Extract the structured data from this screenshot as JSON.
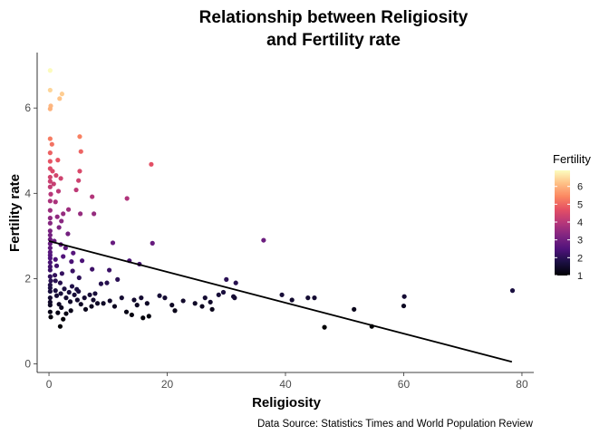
{
  "chart_data": {
    "type": "scatter",
    "title_line1": "Relationship between Religiosity",
    "title_line2": "and Fertility rate",
    "xlabel": "Religiosity",
    "ylabel": "Fertility rate",
    "caption": "Data Source: Statistics Times and World Population Review",
    "xlim": [
      -2,
      82
    ],
    "ylim": [
      -0.2,
      7.3
    ],
    "x_ticks": [
      0,
      20,
      40,
      60,
      80
    ],
    "y_ticks": [
      0,
      2,
      4,
      6
    ],
    "x_tick_labels": [
      "0",
      "20",
      "40",
      "60",
      "80"
    ],
    "y_tick_labels": [
      "0",
      "2",
      "4",
      "6"
    ],
    "grid": false,
    "legend": {
      "title": "Fertility",
      "placement": "right",
      "range": [
        1,
        6.9
      ],
      "ticks": [
        1,
        2,
        3,
        4,
        5,
        6
      ],
      "tick_labels": [
        "1",
        "2",
        "3",
        "4",
        "5",
        "6"
      ],
      "colormap": "magma"
    },
    "trend_line": {
      "x": [
        0,
        78.3
      ],
      "y": [
        2.88,
        0.05
      ]
    },
    "points": [
      [
        0.2,
        6.88
      ],
      [
        0.2,
        6.42
      ],
      [
        0.3,
        6.05
      ],
      [
        0.2,
        5.98
      ],
      [
        2.2,
        6.33
      ],
      [
        1.8,
        6.22
      ],
      [
        0.2,
        5.28
      ],
      [
        0.5,
        5.15
      ],
      [
        5.2,
        5.33
      ],
      [
        5.4,
        4.98
      ],
      [
        0.2,
        4.95
      ],
      [
        0.2,
        4.75
      ],
      [
        1.5,
        4.78
      ],
      [
        0.2,
        4.58
      ],
      [
        0.6,
        4.52
      ],
      [
        1.2,
        4.42
      ],
      [
        0.2,
        4.38
      ],
      [
        5.2,
        4.52
      ],
      [
        17.3,
        4.68
      ],
      [
        5.0,
        4.3
      ],
      [
        4.6,
        4.08
      ],
      [
        0.2,
        4.28
      ],
      [
        2.0,
        4.35
      ],
      [
        0.2,
        4.15
      ],
      [
        0.8,
        4.22
      ],
      [
        1.6,
        4.05
      ],
      [
        0.3,
        3.98
      ],
      [
        7.3,
        3.92
      ],
      [
        13.2,
        3.88
      ],
      [
        0.2,
        3.82
      ],
      [
        1.1,
        3.8
      ],
      [
        3.3,
        3.62
      ],
      [
        0.2,
        3.6
      ],
      [
        2.4,
        3.52
      ],
      [
        0.2,
        3.42
      ],
      [
        1.4,
        3.45
      ],
      [
        0.2,
        3.3
      ],
      [
        2.1,
        3.35
      ],
      [
        5.3,
        3.52
      ],
      [
        7.6,
        3.52
      ],
      [
        0.2,
        3.12
      ],
      [
        0.2,
        3.02
      ],
      [
        1.7,
        3.2
      ],
      [
        3.2,
        3.05
      ],
      [
        0.2,
        2.92
      ],
      [
        0.2,
        2.82
      ],
      [
        0.9,
        2.88
      ],
      [
        0.2,
        2.72
      ],
      [
        2.0,
        2.8
      ],
      [
        0.2,
        2.62
      ],
      [
        2.8,
        2.72
      ],
      [
        10.8,
        2.84
      ],
      [
        17.5,
        2.83
      ],
      [
        36.3,
        2.9
      ],
      [
        0.2,
        2.55
      ],
      [
        4.1,
        2.6
      ],
      [
        2.4,
        2.52
      ],
      [
        0.2,
        2.48
      ],
      [
        0.2,
        2.38
      ],
      [
        1.1,
        2.45
      ],
      [
        3.8,
        2.4
      ],
      [
        5.6,
        2.42
      ],
      [
        0.2,
        2.28
      ],
      [
        1.3,
        2.3
      ],
      [
        13.6,
        2.42
      ],
      [
        15.3,
        2.34
      ],
      [
        4.0,
        2.18
      ],
      [
        7.3,
        2.22
      ],
      [
        0.2,
        2.2
      ],
      [
        2.2,
        2.12
      ],
      [
        10.2,
        2.2
      ],
      [
        0.2,
        2.05
      ],
      [
        1.0,
        2.08
      ],
      [
        0.3,
        1.95
      ],
      [
        1.1,
        1.95
      ],
      [
        5.1,
        2.02
      ],
      [
        8.8,
        1.88
      ],
      [
        9.8,
        1.9
      ],
      [
        11.6,
        1.98
      ],
      [
        0.2,
        1.85
      ],
      [
        1.9,
        1.9
      ],
      [
        3.9,
        1.82
      ],
      [
        0.2,
        1.78
      ],
      [
        1.1,
        1.72
      ],
      [
        2.6,
        1.76
      ],
      [
        4.7,
        1.75
      ],
      [
        0.2,
        1.7
      ],
      [
        2.0,
        1.65
      ],
      [
        3.4,
        1.68
      ],
      [
        4.3,
        1.62
      ],
      [
        5.0,
        1.7
      ],
      [
        6.9,
        1.62
      ],
      [
        7.8,
        1.65
      ],
      [
        0.2,
        1.55
      ],
      [
        1.3,
        1.6
      ],
      [
        2.9,
        1.55
      ],
      [
        4.8,
        1.5
      ],
      [
        6.0,
        1.55
      ],
      [
        7.5,
        1.5
      ],
      [
        0.2,
        1.45
      ],
      [
        1.7,
        1.4
      ],
      [
        3.6,
        1.46
      ],
      [
        8.2,
        1.42
      ],
      [
        0.2,
        1.38
      ],
      [
        2.1,
        1.32
      ],
      [
        5.4,
        1.4
      ],
      [
        7.2,
        1.35
      ],
      [
        9.2,
        1.42
      ],
      [
        10.3,
        1.48
      ],
      [
        11.1,
        1.35
      ],
      [
        12.3,
        1.55
      ],
      [
        14.4,
        1.5
      ],
      [
        15.6,
        1.55
      ],
      [
        16.6,
        1.42
      ],
      [
        14.9,
        1.38
      ],
      [
        13.1,
        1.22
      ],
      [
        14.0,
        1.15
      ],
      [
        15.9,
        1.08
      ],
      [
        16.9,
        1.12
      ],
      [
        18.7,
        1.6
      ],
      [
        19.6,
        1.55
      ],
      [
        20.8,
        1.38
      ],
      [
        21.3,
        1.25
      ],
      [
        22.7,
        1.48
      ],
      [
        24.7,
        1.42
      ],
      [
        26.4,
        1.55
      ],
      [
        27.3,
        1.45
      ],
      [
        28.7,
        1.62
      ],
      [
        29.5,
        1.68
      ],
      [
        30.0,
        1.98
      ],
      [
        31.2,
        1.58
      ],
      [
        31.4,
        1.55
      ],
      [
        31.6,
        1.9
      ],
      [
        25.9,
        1.35
      ],
      [
        27.6,
        1.28
      ],
      [
        0.2,
        1.22
      ],
      [
        1.5,
        1.2
      ],
      [
        2.9,
        1.18
      ],
      [
        3.7,
        1.25
      ],
      [
        6.2,
        1.28
      ],
      [
        0.3,
        1.1
      ],
      [
        2.4,
        1.05
      ],
      [
        1.9,
        0.88
      ],
      [
        39.4,
        1.62
      ],
      [
        41.1,
        1.5
      ],
      [
        43.8,
        1.55
      ],
      [
        44.9,
        1.55
      ],
      [
        46.6,
        0.86
      ],
      [
        51.6,
        1.28
      ],
      [
        54.6,
        0.88
      ],
      [
        60.1,
        1.58
      ],
      [
        60.0,
        1.36
      ],
      [
        78.4,
        1.72
      ]
    ]
  }
}
